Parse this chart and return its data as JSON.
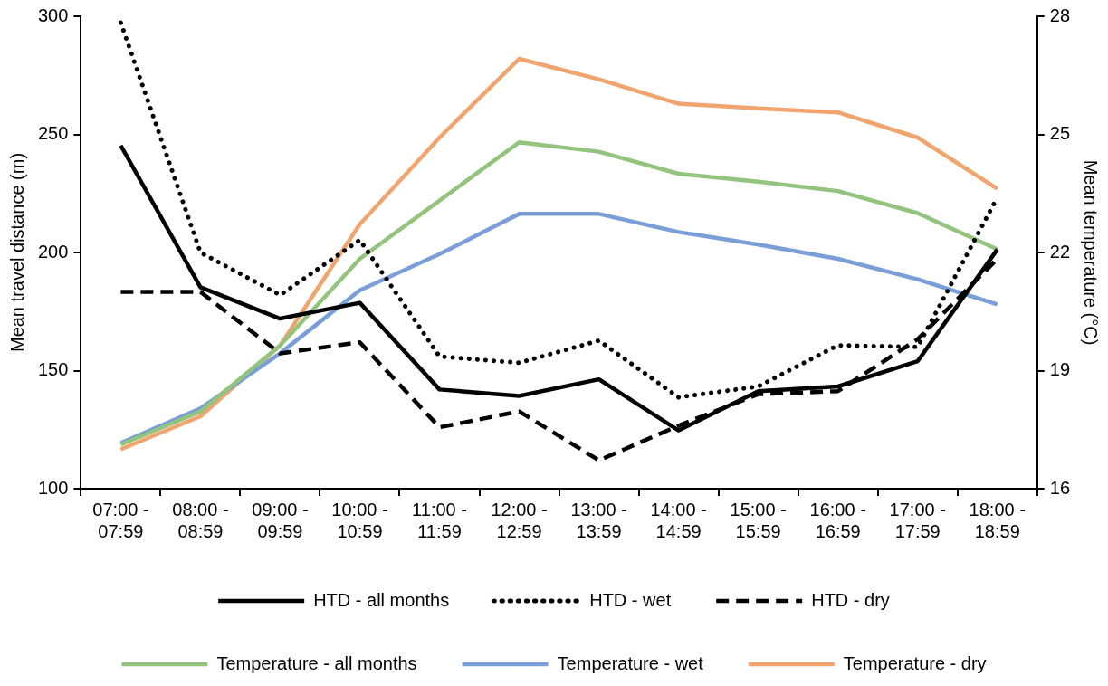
{
  "chart_data": {
    "type": "line",
    "ylabel": "Mean travel distance (m)",
    "y2label": "Mean temperature (°C)",
    "categories": [
      "07:00 - 07:59",
      "08:00 - 08:59",
      "09:00 - 09:59",
      "10:00 - 10:59",
      "11:00 - 11:59",
      "12:00 - 12:59",
      "13:00 - 13:59",
      "14:00 - 14:59",
      "15:00 - 15:59",
      "16:00 - 16:59",
      "17:00 - 17:59",
      "18:00 - 18:59"
    ],
    "ylim": [
      100,
      300
    ],
    "yticks": [
      100,
      150,
      200,
      250,
      300
    ],
    "y2lim": [
      16,
      28
    ],
    "y2ticks": [
      16,
      19,
      22,
      25,
      28
    ],
    "grid": false,
    "legend": "bottom",
    "marker": "none",
    "series": [
      {
        "name": "HTD - all months",
        "color": "#000000",
        "line_style": "solid",
        "values": [
          245.3,
          185.3,
          172,
          178.7,
          142,
          139.3,
          146.3,
          124.7,
          141.3,
          143.3,
          154,
          201.3
        ]
      },
      {
        "name": "HTD - wet",
        "color": "#000000",
        "line_style": "dotted",
        "values": [
          297.3,
          200,
          182,
          205.3,
          156,
          153.3,
          162.7,
          138.7,
          143.3,
          160.7,
          160,
          223.3
        ]
      },
      {
        "name": "HTD - dry",
        "color": "#000000",
        "line_style": "dashed",
        "values": [
          183.3,
          183.3,
          157.3,
          162,
          126,
          132.7,
          112,
          126.7,
          140,
          141.3,
          163.3,
          197.3
        ]
      },
      {
        "name": "Temperature - all months",
        "color": "#93c47d",
        "line_style": "solid",
        "axis": "y2",
        "values": [
          17.12,
          17.96,
          19.64,
          21.84,
          23.32,
          24.8,
          24.56,
          24.0,
          23.8,
          23.56,
          23.0,
          22.08
        ]
      },
      {
        "name": "Temperature - wet",
        "color": "#7a9fd8",
        "line_style": "solid",
        "axis": "y2",
        "values": [
          17.16,
          18.04,
          19.44,
          21.04,
          21.96,
          22.98,
          22.98,
          22.52,
          22.2,
          21.84,
          21.32,
          20.68
        ]
      },
      {
        "name": "Temperature - dry",
        "color": "#f0a56e",
        "line_style": "solid",
        "axis": "y2",
        "values": [
          17.0,
          17.84,
          19.64,
          22.72,
          24.92,
          26.92,
          26.4,
          25.78,
          25.66,
          25.56,
          24.92,
          23.62
        ]
      }
    ]
  }
}
